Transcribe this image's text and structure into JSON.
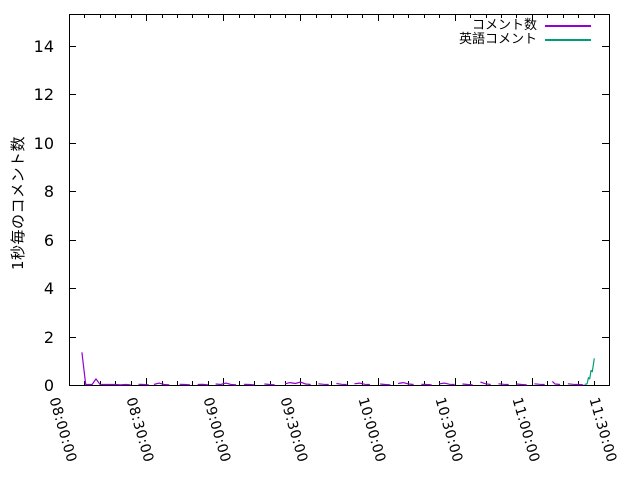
{
  "chart_data": {
    "type": "line",
    "title": "",
    "xlabel": "",
    "ylabel": "1秒毎のコメント数",
    "grid": false,
    "legend_position": "top-right-inside",
    "axis_color": "#000000",
    "background_color": "#ffffff",
    "y_axis": {
      "range": [
        0,
        15.3
      ],
      "ticks": [
        {
          "v": 0,
          "label": "0"
        },
        {
          "v": 2,
          "label": "2"
        },
        {
          "v": 4,
          "label": "4"
        },
        {
          "v": 6,
          "label": "6"
        },
        {
          "v": 8,
          "label": "8"
        },
        {
          "v": 10,
          "label": "10"
        },
        {
          "v": 12,
          "label": "12"
        },
        {
          "v": 14,
          "label": "14"
        }
      ]
    },
    "x_axis": {
      "unit": "time-of-day",
      "range_minutes_from_0800": [
        0,
        210
      ],
      "minor_tick_step_minutes": 6,
      "ticks": [
        {
          "t": 0,
          "label": "08:00:00"
        },
        {
          "t": 30,
          "label": "08:30:00"
        },
        {
          "t": 60,
          "label": "09:00:00"
        },
        {
          "t": 90,
          "label": "09:30:00"
        },
        {
          "t": 120,
          "label": "10:00:00"
        },
        {
          "t": 150,
          "label": "10:30:00"
        },
        {
          "t": 180,
          "label": "11:00:00"
        },
        {
          "t": 210,
          "label": "11:30:00"
        }
      ]
    },
    "series": [
      {
        "name": "コメント数",
        "color": "#9400d3",
        "points": [
          [
            5,
            1.35
          ],
          [
            6.5,
            0.02
          ],
          [
            9,
            0.02
          ],
          [
            10.5,
            0.25
          ],
          [
            12,
            0.03
          ],
          [
            14,
            0.02
          ],
          [
            16,
            0.02
          ],
          [
            18,
            0.02
          ],
          [
            20,
            0.01
          ],
          [
            22,
            0.02
          ],
          [
            24,
            0.01
          ],
          null,
          [
            27,
            0.03
          ],
          [
            29,
            0.02
          ],
          [
            31,
            0.01
          ],
          null,
          [
            33,
            0.02
          ],
          [
            35,
            0.08
          ],
          [
            37,
            0.02
          ],
          [
            39,
            0.01
          ],
          null,
          [
            43,
            0.03
          ],
          [
            45,
            0.02
          ],
          [
            47,
            0.01
          ],
          null,
          [
            50,
            0.02
          ],
          [
            52,
            0.03
          ],
          [
            54,
            0.01
          ],
          null,
          [
            57,
            0.04
          ],
          [
            59,
            0.02
          ],
          [
            61,
            0.08
          ],
          [
            63,
            0.02
          ],
          [
            65,
            0.01
          ],
          null,
          [
            68,
            0.03
          ],
          [
            70,
            0.02
          ],
          [
            72,
            0.01
          ],
          null,
          [
            76,
            0.04
          ],
          [
            78,
            0.02
          ],
          [
            80,
            0.01
          ],
          null,
          [
            84,
            0.05
          ],
          [
            86,
            0.1
          ],
          [
            88,
            0.06
          ],
          [
            90,
            0.12
          ],
          [
            92,
            0.04
          ],
          [
            94,
            0.02
          ],
          null,
          [
            97,
            0.05
          ],
          [
            99,
            0.03
          ],
          [
            101,
            0.02
          ],
          null,
          [
            104,
            0.06
          ],
          [
            106,
            0.03
          ],
          [
            108,
            0.02
          ],
          null,
          [
            111,
            0.05
          ],
          [
            113,
            0.08
          ],
          [
            115,
            0.03
          ],
          [
            117,
            0.02
          ],
          null,
          [
            121,
            0.04
          ],
          [
            123,
            0.02
          ],
          [
            125,
            0.01
          ],
          null,
          [
            128,
            0.06
          ],
          [
            130,
            0.1
          ],
          [
            132,
            0.04
          ],
          [
            134,
            0.02
          ],
          null,
          [
            137,
            0.03
          ],
          [
            139,
            0.02
          ],
          [
            141,
            0.01
          ],
          null,
          [
            144,
            0.05
          ],
          [
            146,
            0.08
          ],
          [
            148,
            0.03
          ],
          [
            150,
            0.02
          ],
          null,
          [
            153,
            0.04
          ],
          [
            155,
            0.02
          ],
          [
            157,
            0.01
          ],
          null,
          [
            160,
            0.12
          ],
          [
            162,
            0.05
          ],
          [
            164,
            0.02
          ],
          null,
          [
            167,
            0.05
          ],
          [
            169,
            0.03
          ],
          [
            171,
            0.02
          ],
          null,
          [
            174,
            0.04
          ],
          [
            176,
            0.02
          ],
          [
            178,
            0.01
          ],
          null,
          [
            181,
            0.05
          ],
          [
            183,
            0.03
          ],
          [
            185,
            0.02
          ],
          null,
          [
            188,
            0.15
          ],
          [
            189,
            0.04
          ],
          [
            191,
            0.02
          ],
          null,
          [
            194,
            0.05
          ],
          [
            196,
            0.03
          ],
          [
            198,
            0.02
          ],
          [
            200,
            0.01
          ]
        ]
      },
      {
        "name": "英語コメント",
        "color": "#009e73",
        "points": [
          [
            200.5,
            0.02
          ],
          [
            201.5,
            0.05
          ],
          [
            202,
            0.3
          ],
          [
            202.5,
            0.25
          ],
          [
            203,
            0.6
          ],
          [
            203.5,
            0.55
          ],
          [
            204.3,
            1.1
          ]
        ]
      }
    ]
  }
}
